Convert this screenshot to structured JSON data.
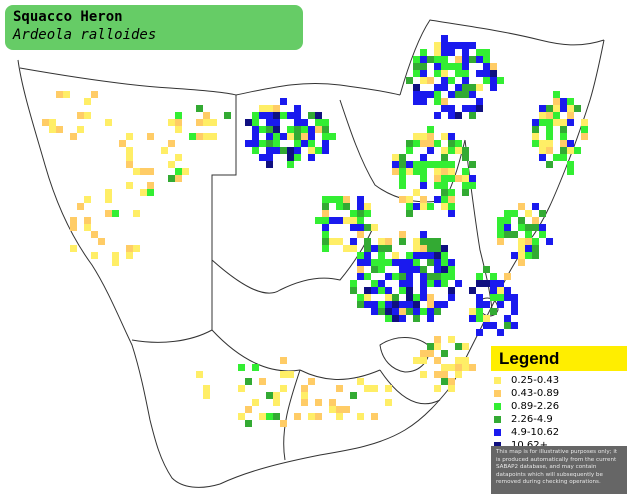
{
  "title": {
    "common_name": "Squacco Heron",
    "scientific_name": "Ardeola ralloides"
  },
  "legend": {
    "heading": "Legend",
    "items": [
      {
        "label": "0.25-0.43",
        "color": "#ffee66"
      },
      {
        "label": "0.43-0.89",
        "color": "#ffcc66"
      },
      {
        "label": "0.89-2.26",
        "color": "#33ee33"
      },
      {
        "label": "2.26-4.9",
        "color": "#33aa33"
      },
      {
        "label": "4.9-10.62",
        "color": "#1a1aee"
      },
      {
        "label": "10.62+",
        "color": "#101080"
      }
    ],
    "note": "This map is for illustrative purposes only; it is produced automatically from the current SABAP2 database, and may contain datapoints which will subsequently be removed during checking operations."
  },
  "colors": {
    "title_bg": "#66cc66",
    "legend_head_bg": "#ffee00",
    "note_bg": "#666666",
    "border": "#333333"
  }
}
